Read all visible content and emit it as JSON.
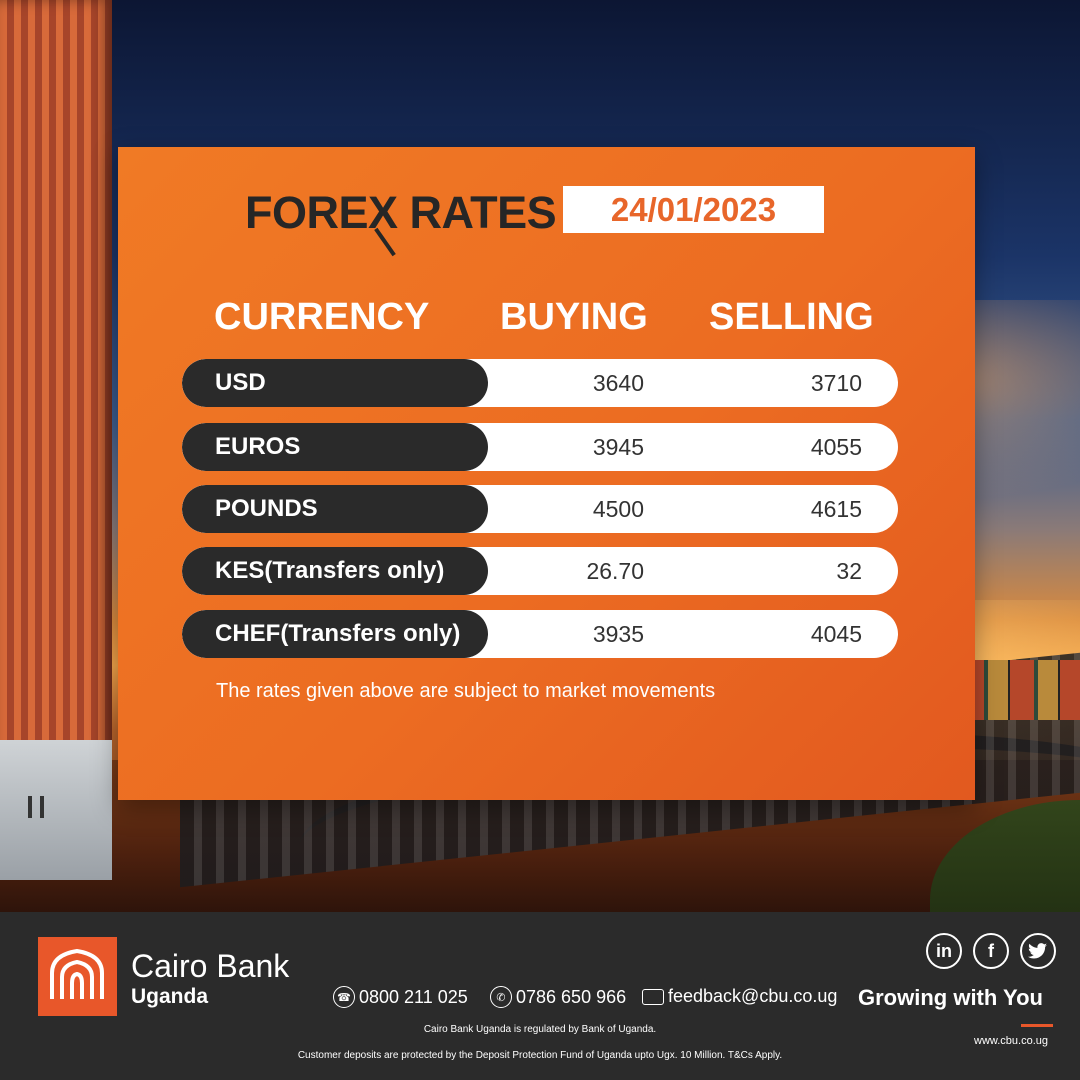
{
  "header": {
    "title": "FOREX RATES",
    "date": "24/01/2023"
  },
  "table": {
    "columns": [
      "CURRENCY",
      "BUYING",
      "SELLING"
    ],
    "rows": [
      {
        "currency": "USD",
        "buying": "3640",
        "selling": "3710"
      },
      {
        "currency": "EUROS",
        "buying": "3945",
        "selling": "4055"
      },
      {
        "currency": "POUNDS",
        "buying": "4500",
        "selling": "4615"
      },
      {
        "currency": "KES(Transfers only)",
        "buying": "26.70",
        "selling": "32"
      },
      {
        "currency": "CHEF(Transfers only)",
        "buying": "3935",
        "selling": "4045"
      }
    ],
    "note": "The rates given above are subject to market movements"
  },
  "footer": {
    "brand_name": "Cairo Bank",
    "brand_sub": "Uganda",
    "phone": "0800 211 025",
    "whatsapp": "0786 650 966",
    "email": "feedback@cbu.co.ug",
    "tagline": "Growing with You",
    "website": "www.cbu.co.ug",
    "legal_1": "Cairo Bank Uganda is regulated by Bank of Uganda.",
    "legal_2": "Customer deposits are protected by the Deposit Protection Fund of Uganda upto Ugx. 10 Million. T&Cs Apply.",
    "social_icons": [
      "linkedin-icon",
      "facebook-icon",
      "twitter-icon"
    ]
  },
  "colors": {
    "accent_orange": "#EC6C22",
    "dark": "#2A2A2A",
    "footer_bg": "#2B2B2B"
  }
}
